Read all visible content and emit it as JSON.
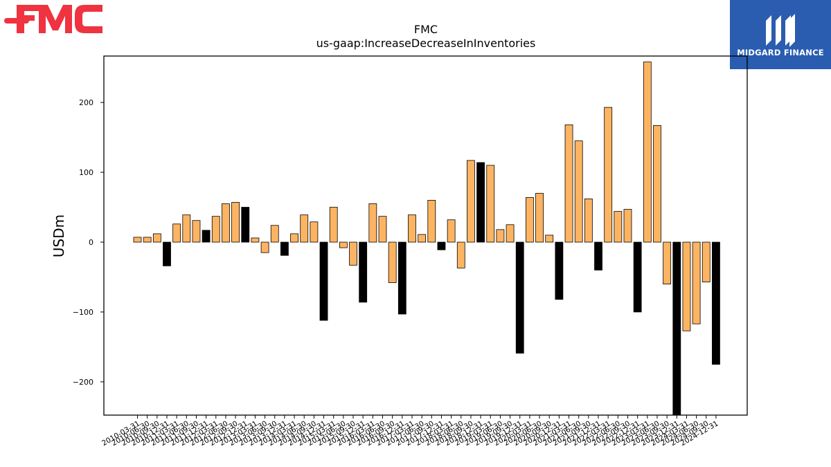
{
  "brand": {
    "company_logo_text": "FMC",
    "sponsor_name": "MIDGARD FINANCE",
    "fmc_red": "#ef3340",
    "midgard_blue": "#2a5db0"
  },
  "chart_data": {
    "type": "bar",
    "title": "FMC",
    "subtitle": "us-gaap:IncreaseDecreaseInInventories",
    "xlabel": "",
    "ylabel": "USDm",
    "ylim": [
      -248,
      265
    ],
    "yticks": [
      -200,
      -100,
      0,
      100,
      200
    ],
    "ytick_labels": [
      "−200",
      "−100",
      "0",
      "100",
      "200"
    ],
    "grid": false,
    "colors": {
      "quarter": "#fdb462",
      "year_end": "#000000"
    },
    "categories": [
      "2010-03-31",
      "2010-06-30",
      "2010-09-30",
      "2010-12-31",
      "2011-03-31",
      "2011-06-30",
      "2011-09-30",
      "2011-12-31",
      "2012-03-31",
      "2012-06-30",
      "2012-09-30",
      "2012-12-31",
      "2013-03-31",
      "2013-06-30",
      "2013-09-30",
      "2013-12-31",
      "2014-03-31",
      "2014-06-30",
      "2014-09-30",
      "2014-12-31",
      "2015-03-31",
      "2015-06-30",
      "2015-09-30",
      "2015-12-31",
      "2016-03-31",
      "2016-06-30",
      "2016-09-30",
      "2016-12-31",
      "2017-03-31",
      "2017-06-30",
      "2017-09-30",
      "2017-12-31",
      "2018-03-31",
      "2018-06-30",
      "2018-09-30",
      "2018-12-31",
      "2019-03-31",
      "2019-06-30",
      "2019-09-30",
      "2019-12-31",
      "2020-03-31",
      "2020-06-30",
      "2020-09-30",
      "2020-12-31",
      "2021-03-31",
      "2021-06-30",
      "2021-09-30",
      "2021-12-31",
      "2022-03-31",
      "2022-06-30",
      "2022-09-30",
      "2022-12-31",
      "2023-03-31",
      "2023-06-30",
      "2023-09-30",
      "2023-12-31",
      "2024-03-31",
      "2024-06-30",
      "2024-09-30",
      "2024-12-31"
    ],
    "values": [
      7,
      7,
      12,
      -34,
      26,
      39,
      31,
      17,
      37,
      55,
      57,
      50,
      6,
      -15,
      24,
      -19,
      12,
      39,
      29,
      -112,
      50,
      -8,
      -33,
      -86,
      55,
      37,
      -58,
      -103,
      39,
      11,
      60,
      -11,
      32,
      -37,
      117,
      114,
      110,
      18,
      25,
      -159,
      64,
      70,
      10,
      -82,
      168,
      145,
      62,
      -40,
      193,
      44,
      47,
      -100,
      258,
      167,
      -60,
      -248,
      -127,
      -117,
      -57,
      -175
    ]
  }
}
